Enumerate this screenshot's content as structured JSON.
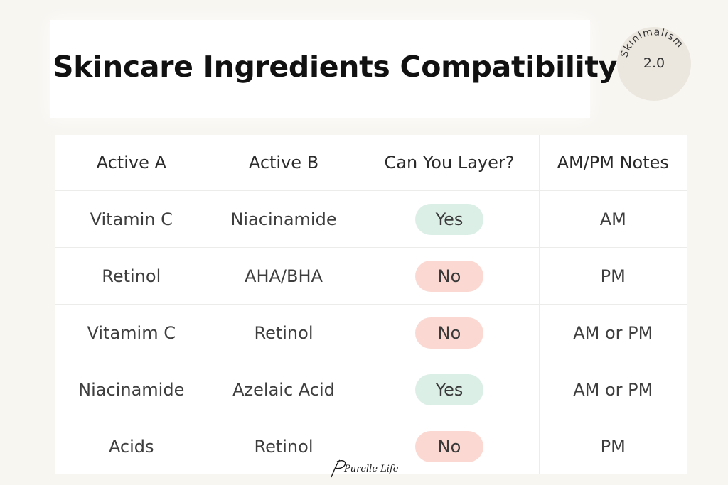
{
  "title": "Skincare Ingredients Compatibility",
  "badge": {
    "arc_text": "Skinimalism",
    "version": "2.0"
  },
  "table": {
    "headers": [
      "Active A",
      "Active B",
      "Can You Layer?",
      "AM/PM Notes"
    ],
    "rows": [
      {
        "a": "Vitamin C",
        "b": "Niacinamide",
        "layer": "Yes",
        "notes": "AM"
      },
      {
        "a": "Retinol",
        "b": "AHA/BHA",
        "layer": "No",
        "notes": "PM"
      },
      {
        "a": "Vitamim C",
        "b": "Retinol",
        "layer": "No",
        "notes": "AM or PM"
      },
      {
        "a": "Niacinamide",
        "b": "Azelaic Acid",
        "layer": "Yes",
        "notes": "AM or PM"
      },
      {
        "a": "Acids",
        "b": "Retinol",
        "layer": "No",
        "notes": "PM"
      }
    ]
  },
  "signature": "Purelle Life",
  "colors": {
    "yes": "#dcefe7",
    "no": "#fbd9d2",
    "background": "#f8f6f1"
  }
}
